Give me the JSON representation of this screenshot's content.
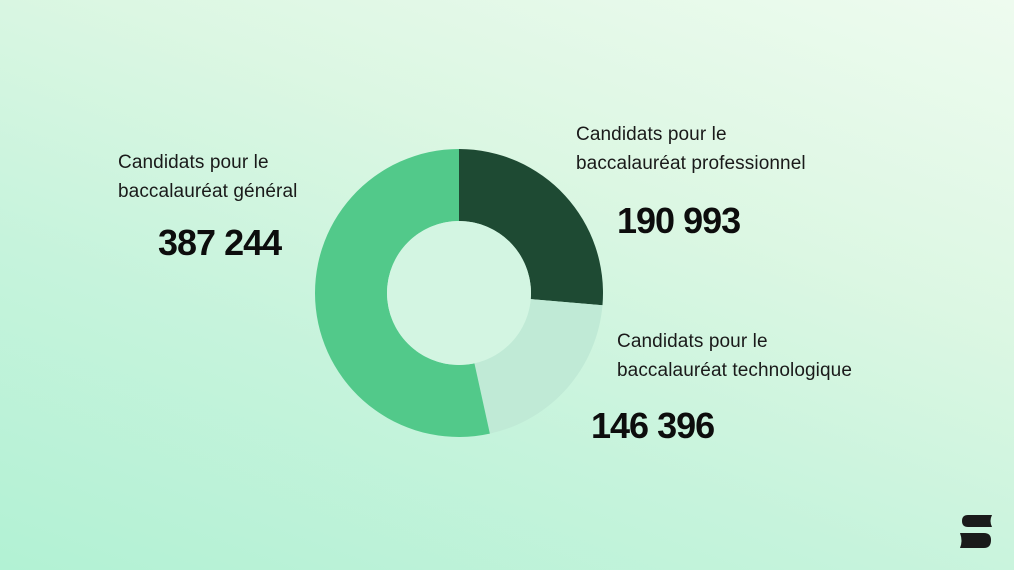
{
  "chart_data": {
    "type": "donut",
    "title": "",
    "categories": [
      "Candidats pour le baccalauréat professionnel",
      "Candidats pour le baccalauréat technologique",
      "Candidats pour le baccalauréat général"
    ],
    "values": [
      190993,
      146396,
      387244
    ],
    "colors": [
      "#1e4a33",
      "#c0ead6",
      "#52c98a"
    ],
    "start_angle_deg": 0,
    "direction": "clockwise",
    "center": [
      459,
      293
    ],
    "outer_radius": 144,
    "inner_radius": 72
  },
  "segments": {
    "general": {
      "label_line1": "Candidats pour le",
      "label_line2": "baccalauréat général",
      "value": "387 244"
    },
    "professionnel": {
      "label_line1": "Candidats pour le",
      "label_line2": "baccalauréat professionnel",
      "value": "190 993"
    },
    "technologique": {
      "label_line1": "Candidats pour le",
      "label_line2": "baccalauréat technologique",
      "value": "146 396"
    }
  },
  "logo": {
    "icon": "brand-s-icon",
    "color": "#1a1a1a"
  }
}
